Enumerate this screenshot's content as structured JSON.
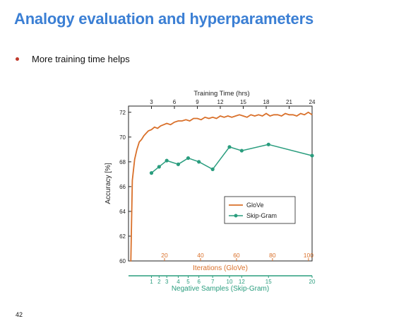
{
  "slide": {
    "title": "Analogy evaluation and hyperparameters",
    "bullet": "More training time helps",
    "page_number": "42"
  },
  "colors": {
    "title": "#3b7fd4",
    "glove": "#d9702a",
    "skipgram": "#2a9d7e",
    "bullet": "#c0392b"
  },
  "chart_data": {
    "type": "line",
    "title": "",
    "ylabel": "Accuracy [%]",
    "ylim": [
      60,
      72.5
    ],
    "yticks": [
      60,
      62,
      64,
      66,
      68,
      70,
      72
    ],
    "top_axis": {
      "label": "Training Time (hrs)",
      "ticks": [
        3,
        6,
        9,
        12,
        15,
        18,
        21,
        24
      ],
      "range": [
        0,
        24
      ]
    },
    "inner_axis": {
      "label": "Iterations (GloVe)",
      "ticks": [
        20,
        40,
        60,
        80,
        100
      ],
      "range": [
        0,
        102
      ]
    },
    "bottom_axis": {
      "label": "Negative Samples (Skip-Gram)",
      "ticks": [
        1,
        2,
        3,
        4,
        5,
        6,
        7,
        10,
        12,
        15,
        20
      ]
    },
    "legend": {
      "position": "bottom-right",
      "entries": [
        "GloVe",
        "Skip-Gram"
      ]
    },
    "series": [
      {
        "name": "GloVe",
        "x_hrs": [
          0.3,
          0.5,
          0.8,
          1.1,
          1.4,
          1.7,
          2.0,
          2.3,
          2.6,
          3.0,
          3.4,
          3.8,
          4.2,
          4.6,
          5.0,
          5.5,
          6.0,
          6.5,
          7.0,
          7.5,
          8.0,
          8.5,
          9.0,
          9.5,
          10.0,
          10.5,
          11.0,
          11.5,
          12.0,
          12.5,
          13.0,
          13.5,
          14.0,
          14.5,
          15.0,
          15.5,
          16.0,
          16.5,
          17.0,
          17.5,
          18.0,
          18.5,
          19.0,
          19.5,
          20.0,
          20.5,
          21.0,
          21.5,
          22.0,
          22.5,
          23.0,
          23.5,
          24.0
        ],
        "y": [
          60.0,
          66.5,
          68.2,
          69.0,
          69.6,
          69.8,
          70.1,
          70.3,
          70.5,
          70.6,
          70.8,
          70.7,
          70.9,
          71.0,
          71.1,
          71.0,
          71.2,
          71.3,
          71.3,
          71.4,
          71.3,
          71.5,
          71.5,
          71.4,
          71.6,
          71.5,
          71.6,
          71.5,
          71.7,
          71.6,
          71.7,
          71.6,
          71.7,
          71.8,
          71.7,
          71.6,
          71.8,
          71.7,
          71.8,
          71.7,
          71.9,
          71.7,
          71.8,
          71.8,
          71.7,
          71.9,
          71.8,
          71.8,
          71.7,
          71.9,
          71.8,
          72.0,
          71.8
        ]
      },
      {
        "name": "Skip-Gram",
        "x_hrs": [
          3,
          4,
          5,
          6.5,
          7.8,
          9.2,
          11,
          13.2,
          14.8,
          18.3,
          24
        ],
        "y": [
          67.1,
          67.6,
          68.1,
          67.8,
          68.3,
          68.0,
          67.4,
          69.2,
          68.9,
          69.4,
          68.5
        ]
      }
    ]
  }
}
